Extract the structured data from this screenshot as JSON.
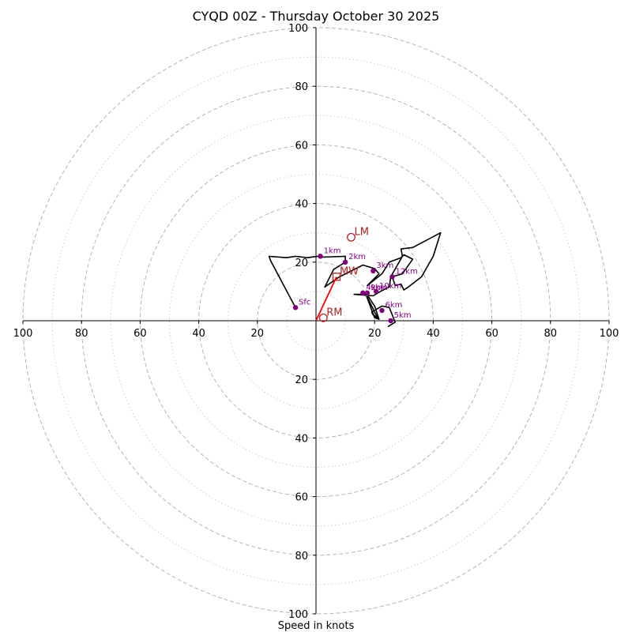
{
  "chart_data": {
    "type": "hodograph",
    "title": "CYQD 00Z - Thursday October 30 2025",
    "xlabel": "Speed in knots",
    "xlim": [
      -100,
      100
    ],
    "ylim": [
      -100,
      100
    ],
    "tick_labels": [
      "100",
      "80",
      "60",
      "40",
      "20",
      "20",
      "40",
      "60",
      "80",
      "100"
    ],
    "x_ticks": [
      -100,
      -80,
      -60,
      -40,
      -20,
      20,
      40,
      60,
      80,
      100
    ],
    "y_ticks": [
      100,
      80,
      60,
      40,
      20,
      -20,
      -40,
      -60,
      -80,
      -100
    ],
    "rings_major": [
      20,
      40,
      60,
      80,
      100
    ],
    "rings_minor": [
      10,
      30,
      50,
      70,
      90
    ],
    "colors": {
      "trace": "#000000",
      "height_marker": "#800080",
      "storm_motion": "#b22222",
      "mean_wind_vector": "#ff0000",
      "ring_major": "#b5b5b5",
      "ring_minor": "#cccccc"
    },
    "trace": [
      [
        -7.0,
        4.5
      ],
      [
        -15.5,
        20.5
      ],
      [
        -16.0,
        22.0
      ],
      [
        -10.0,
        21.5
      ],
      [
        -7.0,
        22.0
      ],
      [
        -3.0,
        21.5
      ],
      [
        0.5,
        22.0
      ],
      [
        1.5,
        21.8
      ],
      [
        1.0,
        22.6
      ],
      [
        2.0,
        21.7
      ],
      [
        10.0,
        22.0
      ],
      [
        10.0,
        20.0
      ],
      [
        6.0,
        17.5
      ],
      [
        3.0,
        11.5
      ],
      [
        8.0,
        15.0
      ],
      [
        16.0,
        19.0
      ],
      [
        20.0,
        17.8
      ],
      [
        21.5,
        16.0
      ],
      [
        17.5,
        12.0
      ],
      [
        22.5,
        16.0
      ],
      [
        25.0,
        20.0
      ],
      [
        29.0,
        21.5
      ],
      [
        30.0,
        22.5
      ],
      [
        33.0,
        21.0
      ],
      [
        29.5,
        16.0
      ],
      [
        26.0,
        15.0
      ],
      [
        27.0,
        12.0
      ],
      [
        29.0,
        12.5
      ],
      [
        30.0,
        10.5
      ],
      [
        31.5,
        11.5
      ],
      [
        36.0,
        15.0
      ],
      [
        40.0,
        22.0
      ],
      [
        42.5,
        30.0
      ],
      [
        33.0,
        25.0
      ],
      [
        29.0,
        24.5
      ],
      [
        29.5,
        22.0
      ],
      [
        25.5,
        15.0
      ],
      [
        25.0,
        11.5
      ],
      [
        22.0,
        10.0
      ],
      [
        19.5,
        8.5
      ],
      [
        13.0,
        9.0
      ],
      [
        17.5,
        9.0
      ],
      [
        16.0,
        9.5
      ],
      [
        18.0,
        8.0
      ],
      [
        20.0,
        5.0
      ],
      [
        20.5,
        3.5
      ],
      [
        21.5,
        0.5
      ],
      [
        20.0,
        1.0
      ],
      [
        17.0,
        9.0
      ],
      [
        21.0,
        1.0
      ],
      [
        19.5,
        2.0
      ],
      [
        19.0,
        3.0
      ],
      [
        22.5,
        5.0
      ],
      [
        25.0,
        4.5
      ],
      [
        26.0,
        2.0
      ],
      [
        27.0,
        -0.5
      ],
      [
        24.5,
        -2.0
      ]
    ],
    "height_markers": [
      {
        "label": "Sfc",
        "u": -7.0,
        "v": 4.5
      },
      {
        "label": "1km",
        "u": 1.5,
        "v": 22.0
      },
      {
        "label": "2km",
        "u": 10.0,
        "v": 20.0
      },
      {
        "label": "3km",
        "u": 19.5,
        "v": 17.0
      },
      {
        "label": "4km",
        "u": 16.0,
        "v": 9.5
      },
      {
        "label": "5km",
        "u": 25.5,
        "v": 0.0
      },
      {
        "label": "6km",
        "u": 22.5,
        "v": 3.5
      },
      {
        "label": "9km",
        "u": 17.5,
        "v": 9.5
      },
      {
        "label": "10km",
        "u": 20.5,
        "v": 10.0
      },
      {
        "label": "12km",
        "u": 26.0,
        "v": 15.0
      }
    ],
    "storm_motion": [
      {
        "label": "LM",
        "u": 12.0,
        "v": 28.5
      },
      {
        "label": "RM",
        "u": 2.5,
        "v": 1.0
      },
      {
        "label": "MW",
        "u": 7.0,
        "v": 15.0
      }
    ],
    "mean_wind_vector": {
      "from": [
        0,
        0
      ],
      "to": [
        7.0,
        15.0
      ]
    }
  }
}
